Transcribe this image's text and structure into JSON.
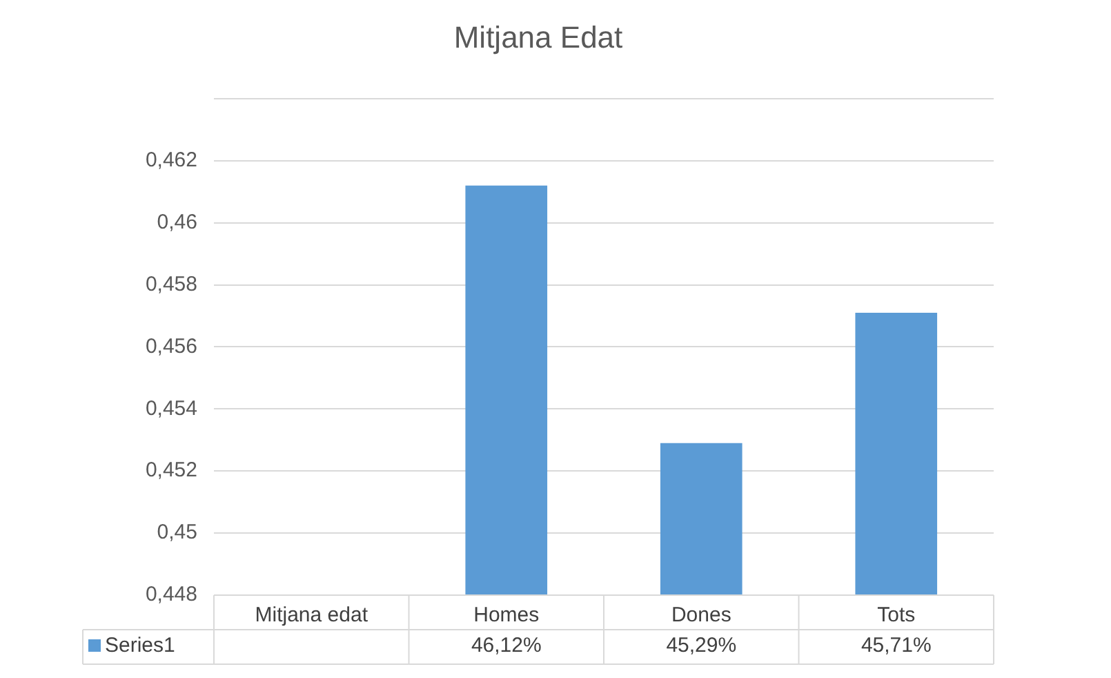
{
  "chart_data": {
    "type": "bar",
    "title": "Mitjana Edat",
    "categories": [
      "Mitjana edat",
      "Homes",
      "Dones",
      "Tots"
    ],
    "series": [
      {
        "name": "Series1",
        "color": "#5b9bd5",
        "values": [
          null,
          0.4612,
          0.4529,
          0.4571
        ],
        "value_labels": [
          null,
          "46,12%",
          "45,29%",
          "45,71%"
        ]
      }
    ],
    "ylim": [
      0.448,
      0.464
    ],
    "yticks": [
      {
        "value": 0.448,
        "label": "0,448"
      },
      {
        "value": 0.45,
        "label": "0,45"
      },
      {
        "value": 0.452,
        "label": "0,452"
      },
      {
        "value": 0.454,
        "label": "0,454"
      },
      {
        "value": 0.456,
        "label": "0,456"
      },
      {
        "value": 0.458,
        "label": "0,458"
      },
      {
        "value": 0.46,
        "label": "0,46"
      },
      {
        "value": 0.462,
        "label": "0,462"
      },
      {
        "value": 0.464,
        "label": null
      }
    ],
    "grid": "y",
    "legend": "bottom"
  }
}
